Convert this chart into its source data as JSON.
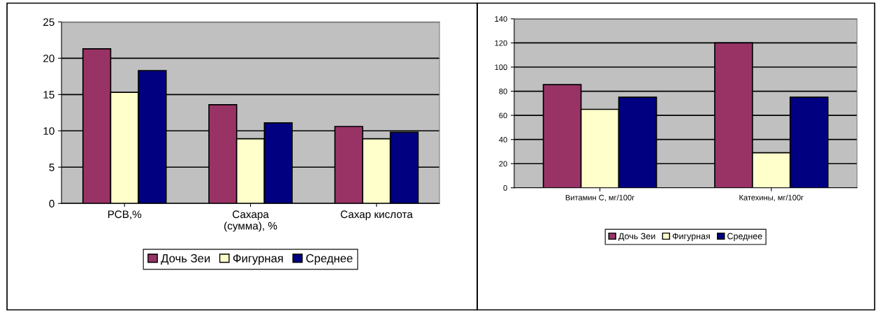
{
  "chart_data": [
    {
      "type": "bar",
      "categories": [
        "РСВ,%",
        "Сахара\n(сумма), %",
        "Сахар кислота"
      ],
      "series": [
        {
          "name": "Дочь Зеи",
          "color": "#993366",
          "values": [
            21.3,
            13.6,
            10.6
          ]
        },
        {
          "name": "Фигурная",
          "color": "#ffffcc",
          "values": [
            15.3,
            8.9,
            8.9
          ]
        },
        {
          "name": "Среднее",
          "color": "#000080",
          "values": [
            18.3,
            11.1,
            9.8
          ]
        }
      ],
      "ylim": [
        0,
        25
      ],
      "yticks": [
        0,
        5,
        10,
        15,
        20,
        25
      ],
      "grid": "y",
      "legend": "bottom"
    },
    {
      "type": "bar",
      "categories": [
        "Витамин С, мг/100г",
        "Катехины, мг/100г"
      ],
      "series": [
        {
          "name": "Дочь Зеи",
          "color": "#993366",
          "values": [
            85.5,
            120
          ]
        },
        {
          "name": "Фигурная",
          "color": "#ffffcc",
          "values": [
            65,
            29
          ]
        },
        {
          "name": "Среднее",
          "color": "#000080",
          "values": [
            75,
            75
          ]
        }
      ],
      "ylim": [
        0,
        140
      ],
      "yticks": [
        0,
        20,
        40,
        60,
        80,
        100,
        120,
        140
      ],
      "grid": "y",
      "legend": "bottom"
    }
  ]
}
